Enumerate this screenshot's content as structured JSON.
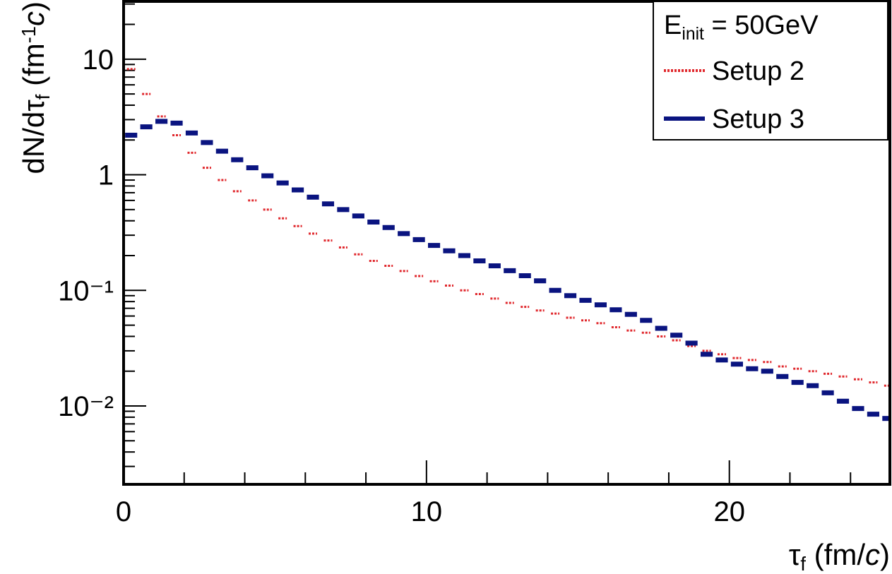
{
  "chart_data": {
    "type": "histogram",
    "log_y": true,
    "x_label": [
      {
        "text": "τ"
      },
      {
        "text": "f",
        "shift": "sub"
      },
      {
        "text": " (fm/"
      },
      {
        "text": "c",
        "style": "italic"
      },
      {
        "text": ")"
      }
    ],
    "y_label": [
      {
        "text": "dN/dτ"
      },
      {
        "text": "f",
        "shift": "sub"
      },
      {
        "text": " (fm"
      },
      {
        "text": "-1",
        "shift": "super"
      },
      {
        "text": "c",
        "style": "italic"
      },
      {
        "text": ")"
      }
    ],
    "legend_title": [
      {
        "text": "E"
      },
      {
        "text": "init",
        "shift": "sub"
      },
      {
        "text": " = 50GeV"
      }
    ],
    "legend": "top-right",
    "xlim": [
      0,
      25.3
    ],
    "ylim": [
      0.0021,
      31.6
    ],
    "xticks": [
      0,
      10,
      20
    ],
    "xminor_ticks": [
      2,
      4,
      6,
      8,
      12,
      14,
      16,
      18,
      22,
      24
    ],
    "yticks": [
      {
        "value": 0.01,
        "label": "10⁻²"
      },
      {
        "value": 0.1,
        "label": "10⁻¹"
      },
      1,
      10
    ],
    "yminor_ticks": [
      0.003,
      0.004,
      0.005,
      0.006,
      0.007,
      0.008,
      0.009,
      0.02,
      0.03,
      0.04,
      0.05,
      0.06,
      0.07,
      0.08,
      0.09,
      0.2,
      0.3,
      0.4,
      0.5,
      0.6,
      0.7,
      0.8,
      0.9,
      2,
      3,
      4,
      5,
      6,
      7,
      8,
      9,
      20,
      30
    ],
    "x": [
      0.25,
      0.75,
      1.25,
      1.75,
      2.25,
      2.75,
      3.25,
      3.75,
      4.25,
      4.75,
      5.25,
      5.75,
      6.25,
      6.75,
      7.25,
      7.75,
      8.25,
      8.75,
      9.25,
      9.75,
      10.25,
      10.75,
      11.25,
      11.75,
      12.25,
      12.75,
      13.25,
      13.75,
      14.25,
      14.75,
      15.25,
      15.75,
      16.25,
      16.75,
      17.25,
      17.75,
      18.25,
      18.75,
      19.25,
      19.75,
      20.25,
      20.75,
      21.25,
      21.75,
      22.25,
      22.75,
      23.25,
      23.75,
      24.25,
      24.75,
      25.25
    ],
    "series": [
      {
        "name": "Setup 2",
        "color": "#e0282d",
        "style": "dotted",
        "values": [
          8.2,
          5.0,
          3.2,
          2.2,
          1.55,
          1.15,
          0.9,
          0.72,
          0.6,
          0.5,
          0.42,
          0.36,
          0.31,
          0.27,
          0.235,
          0.205,
          0.18,
          0.163,
          0.147,
          0.133,
          0.12,
          0.11,
          0.1,
          0.093,
          0.085,
          0.078,
          0.072,
          0.067,
          0.063,
          0.058,
          0.055,
          0.052,
          0.048,
          0.045,
          0.043,
          0.04,
          0.037,
          0.033,
          0.03,
          0.028,
          0.026,
          0.025,
          0.024,
          0.022,
          0.021,
          0.02,
          0.019,
          0.018,
          0.017,
          0.016,
          0.015
        ]
      },
      {
        "name": "Setup 3",
        "color": "#0a1480",
        "style": "solid",
        "values": [
          2.2,
          2.6,
          2.9,
          2.8,
          2.3,
          1.9,
          1.6,
          1.35,
          1.15,
          0.98,
          0.85,
          0.74,
          0.64,
          0.56,
          0.5,
          0.44,
          0.39,
          0.35,
          0.31,
          0.275,
          0.245,
          0.22,
          0.2,
          0.18,
          0.163,
          0.148,
          0.134,
          0.121,
          0.1,
          0.09,
          0.082,
          0.075,
          0.068,
          0.062,
          0.055,
          0.047,
          0.041,
          0.035,
          0.028,
          0.025,
          0.023,
          0.021,
          0.02,
          0.018,
          0.016,
          0.015,
          0.013,
          0.011,
          0.0095,
          0.0085,
          0.0078
        ]
      }
    ]
  }
}
